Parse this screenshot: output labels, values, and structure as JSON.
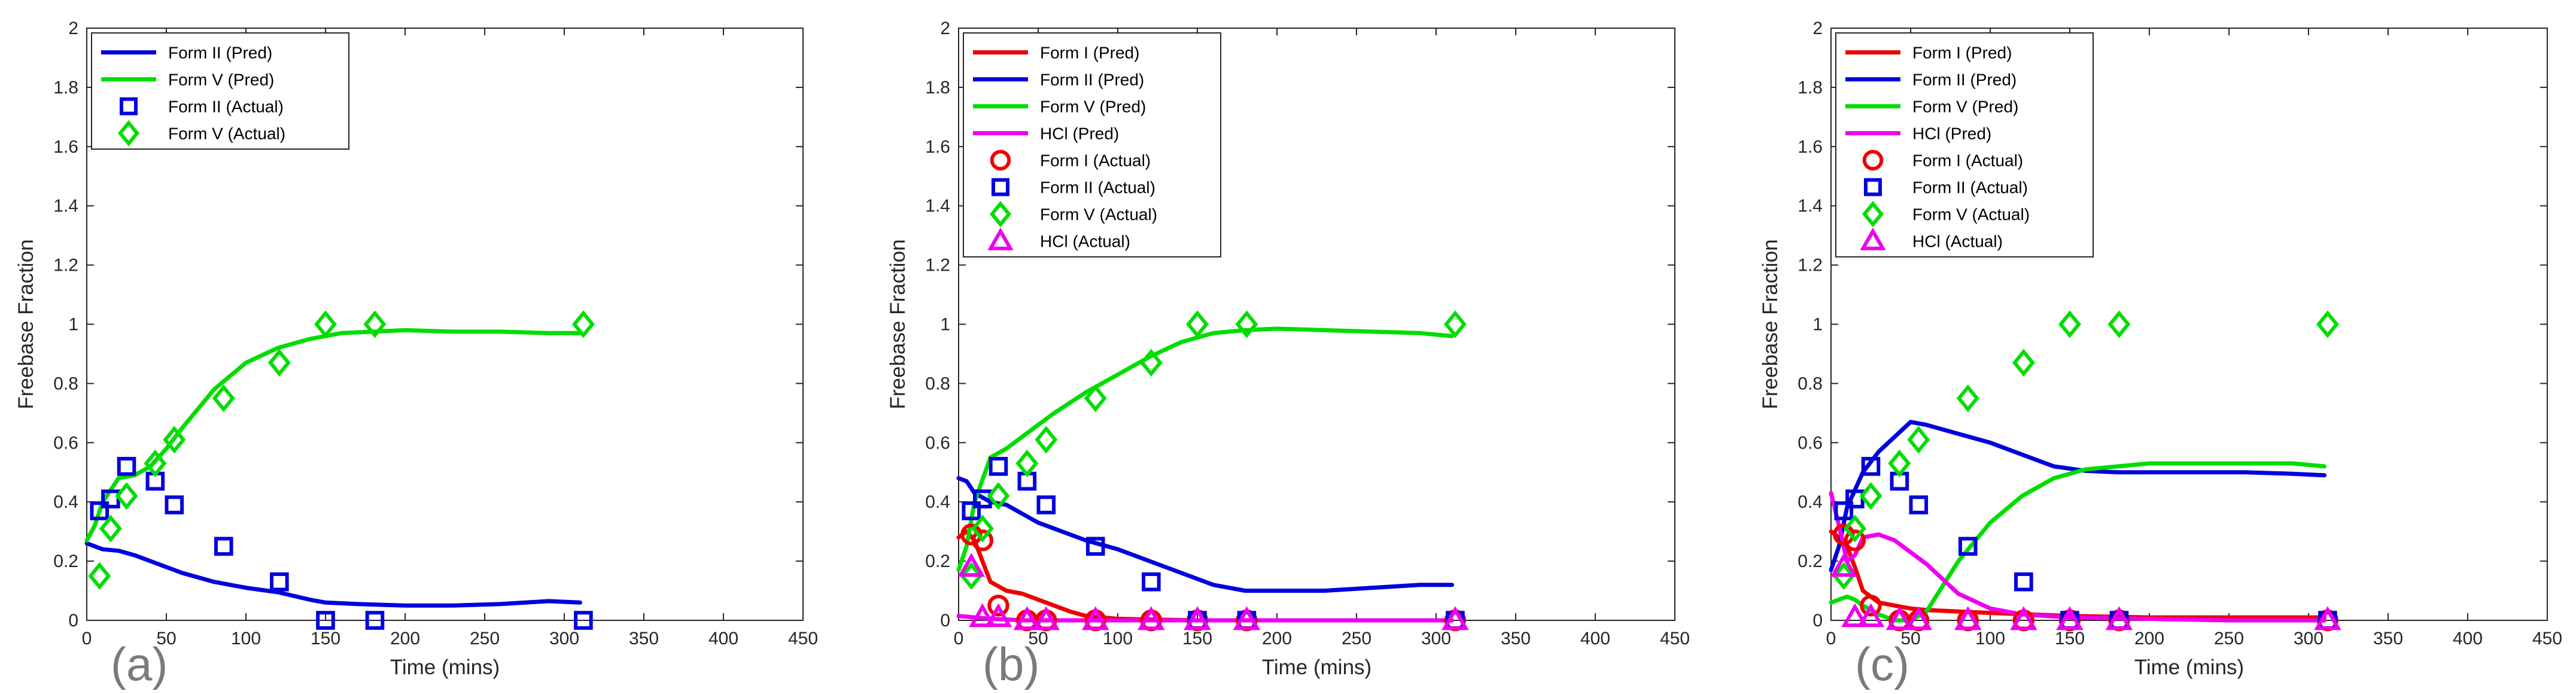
{
  "figure": {
    "panel_labels": [
      "(a)",
      "(b)",
      "(c)"
    ]
  },
  "chart_data": [
    {
      "type": "line",
      "panel_label": "(a)",
      "title": "",
      "xlabel": "Time (mins)",
      "ylabel": "Freebase Fraction",
      "xlim": [
        0,
        450
      ],
      "ylim": [
        0,
        2
      ],
      "xticks": [
        0,
        50,
        100,
        150,
        200,
        250,
        300,
        350,
        400,
        450
      ],
      "yticks": [
        0,
        0.2,
        0.4,
        0.6,
        0.8,
        1,
        1.2,
        1.4,
        1.6,
        1.8,
        2
      ],
      "grid": false,
      "legend_position": "top-left",
      "series": [
        {
          "name": "Form II (Pred)",
          "kind": "line",
          "color": "#0000dd",
          "x": [
            0,
            5,
            10,
            20,
            30,
            40,
            50,
            60,
            80,
            100,
            120,
            140,
            150,
            170,
            200,
            230,
            260,
            290,
            310
          ],
          "y": [
            0.26,
            0.25,
            0.24,
            0.235,
            0.22,
            0.2,
            0.18,
            0.16,
            0.13,
            0.11,
            0.095,
            0.07,
            0.06,
            0.055,
            0.05,
            0.05,
            0.055,
            0.065,
            0.06
          ]
        },
        {
          "name": "Form V (Pred)",
          "kind": "line",
          "color": "#00dd00",
          "x": [
            0,
            5,
            10,
            20,
            30,
            40,
            50,
            60,
            80,
            100,
            120,
            140,
            160,
            180,
            200,
            230,
            260,
            290,
            310
          ],
          "y": [
            0.27,
            0.32,
            0.4,
            0.48,
            0.49,
            0.52,
            0.58,
            0.65,
            0.78,
            0.87,
            0.92,
            0.95,
            0.97,
            0.975,
            0.98,
            0.975,
            0.975,
            0.97,
            0.97
          ]
        },
        {
          "name": "Form II (Actual)",
          "kind": "marker",
          "marker": "square",
          "color": "#0000dd",
          "x": [
            8,
            15,
            25,
            43,
            55,
            86,
            121,
            150,
            181,
            312
          ],
          "y": [
            0.37,
            0.41,
            0.52,
            0.47,
            0.39,
            0.25,
            0.13,
            0,
            0,
            0
          ]
        },
        {
          "name": "Form V (Actual)",
          "kind": "marker",
          "marker": "diamond",
          "color": "#00dd00",
          "x": [
            8,
            15,
            25,
            43,
            55,
            86,
            121,
            150,
            181,
            312
          ],
          "y": [
            0.15,
            0.31,
            0.42,
            0.53,
            0.61,
            0.75,
            0.87,
            1.0,
            1.0,
            1.0
          ]
        }
      ]
    },
    {
      "type": "line",
      "panel_label": "(b)",
      "title": "",
      "xlabel": "Time (mins)",
      "ylabel": "Freebase Fraction",
      "xlim": [
        0,
        450
      ],
      "ylim": [
        0,
        2
      ],
      "xticks": [
        0,
        50,
        100,
        150,
        200,
        250,
        300,
        350,
        400,
        450
      ],
      "yticks": [
        0,
        0.2,
        0.4,
        0.6,
        0.8,
        1,
        1.2,
        1.4,
        1.6,
        1.8,
        2
      ],
      "grid": false,
      "legend_position": "top-left",
      "series": [
        {
          "name": "Form I (Pred)",
          "kind": "line",
          "color": "#ee0000",
          "x": [
            0,
            5,
            10,
            20,
            30,
            40,
            50,
            60,
            70,
            80,
            100,
            150,
            200,
            250,
            310
          ],
          "y": [
            0.28,
            0.3,
            0.27,
            0.13,
            0.1,
            0.09,
            0.07,
            0.05,
            0.03,
            0.015,
            0.005,
            0,
            0,
            0,
            0
          ]
        },
        {
          "name": "Form II (Pred)",
          "kind": "line",
          "color": "#0000dd",
          "x": [
            0,
            5,
            10,
            20,
            30,
            40,
            50,
            60,
            80,
            100,
            120,
            140,
            160,
            180,
            200,
            230,
            260,
            290,
            310
          ],
          "y": [
            0.48,
            0.47,
            0.43,
            0.4,
            0.39,
            0.36,
            0.33,
            0.31,
            0.27,
            0.24,
            0.2,
            0.16,
            0.12,
            0.1,
            0.1,
            0.1,
            0.11,
            0.12,
            0.12
          ]
        },
        {
          "name": "Form V (Pred)",
          "kind": "line",
          "color": "#00dd00",
          "x": [
            0,
            5,
            10,
            20,
            30,
            40,
            50,
            60,
            80,
            100,
            120,
            140,
            160,
            180,
            200,
            230,
            260,
            290,
            310
          ],
          "y": [
            0.17,
            0.25,
            0.4,
            0.55,
            0.58,
            0.62,
            0.66,
            0.7,
            0.77,
            0.83,
            0.89,
            0.94,
            0.97,
            0.98,
            0.985,
            0.98,
            0.975,
            0.97,
            0.96
          ]
        },
        {
          "name": "HCl (Pred)",
          "kind": "line",
          "color": "#ee00ee",
          "x": [
            0,
            10,
            20,
            30,
            40,
            60,
            100,
            150,
            200,
            250,
            310
          ],
          "y": [
            0.015,
            0.01,
            0.005,
            0.003,
            0,
            0,
            0,
            0,
            0,
            0,
            0
          ]
        },
        {
          "name": "Form I (Actual)",
          "kind": "marker",
          "marker": "circle",
          "color": "#ee0000",
          "x": [
            8,
            15,
            25,
            43,
            55,
            86,
            121,
            150,
            181,
            312
          ],
          "y": [
            0.29,
            0.27,
            0.05,
            0,
            0,
            0,
            0,
            0,
            0,
            0
          ]
        },
        {
          "name": "Form II (Actual)",
          "kind": "marker",
          "marker": "square",
          "color": "#0000dd",
          "x": [
            8,
            15,
            25,
            43,
            55,
            86,
            121,
            150,
            181,
            312
          ],
          "y": [
            0.37,
            0.41,
            0.52,
            0.47,
            0.39,
            0.25,
            0.13,
            0,
            0,
            0
          ]
        },
        {
          "name": "Form V (Actual)",
          "kind": "marker",
          "marker": "diamond",
          "color": "#00dd00",
          "x": [
            8,
            15,
            25,
            43,
            55,
            86,
            121,
            150,
            181,
            312
          ],
          "y": [
            0.15,
            0.31,
            0.42,
            0.53,
            0.61,
            0.75,
            0.87,
            1.0,
            1.0,
            1.0
          ]
        },
        {
          "name": "HCl (Actual)",
          "kind": "marker",
          "marker": "triangle",
          "color": "#ee00ee",
          "x": [
            8,
            15,
            25,
            43,
            55,
            86,
            121,
            150,
            181,
            312
          ],
          "y": [
            0.18,
            0.01,
            0.01,
            0,
            0,
            0,
            0,
            0,
            0,
            0
          ]
        }
      ]
    },
    {
      "type": "line",
      "panel_label": "(c)",
      "title": "",
      "xlabel": "Time (mins)",
      "ylabel": "Freebase Fraction",
      "xlim": [
        0,
        450
      ],
      "ylim": [
        0,
        2
      ],
      "xticks": [
        0,
        50,
        100,
        150,
        200,
        250,
        300,
        350,
        400,
        450
      ],
      "yticks": [
        0,
        0.2,
        0.4,
        0.6,
        0.8,
        1,
        1.2,
        1.4,
        1.6,
        1.8,
        2
      ],
      "grid": false,
      "legend_position": "top-left",
      "series": [
        {
          "name": "Form I (Pred)",
          "kind": "line",
          "color": "#ee0000",
          "x": [
            0,
            5,
            10,
            15,
            20,
            30,
            40,
            50,
            60,
            80,
            100,
            150,
            200,
            250,
            310
          ],
          "y": [
            0.3,
            0.28,
            0.25,
            0.18,
            0.1,
            0.06,
            0.05,
            0.04,
            0.035,
            0.03,
            0.025,
            0.015,
            0.01,
            0.01,
            0.01
          ]
        },
        {
          "name": "Form II (Pred)",
          "kind": "line",
          "color": "#0000dd",
          "x": [
            0,
            5,
            10,
            20,
            30,
            40,
            50,
            60,
            80,
            100,
            120,
            140,
            160,
            180,
            200,
            230,
            260,
            290,
            310
          ],
          "y": [
            0.17,
            0.25,
            0.38,
            0.5,
            0.57,
            0.62,
            0.67,
            0.66,
            0.63,
            0.6,
            0.56,
            0.52,
            0.505,
            0.5,
            0.5,
            0.5,
            0.5,
            0.495,
            0.49
          ]
        },
        {
          "name": "Form V (Pred)",
          "kind": "line",
          "color": "#00dd00",
          "x": [
            0,
            5,
            10,
            15,
            20,
            30,
            40,
            50,
            60,
            80,
            100,
            120,
            140,
            160,
            180,
            200,
            230,
            260,
            290,
            310
          ],
          "y": [
            0.06,
            0.07,
            0.08,
            0.07,
            0.05,
            0.02,
            0,
            0,
            0.03,
            0.2,
            0.33,
            0.42,
            0.48,
            0.51,
            0.52,
            0.53,
            0.53,
            0.53,
            0.53,
            0.52
          ]
        },
        {
          "name": "HCl (Pred)",
          "kind": "line",
          "color": "#ee00ee",
          "x": [
            0,
            5,
            10,
            15,
            20,
            30,
            40,
            50,
            60,
            70,
            80,
            100,
            120,
            150,
            200,
            250,
            310
          ],
          "y": [
            0.43,
            0.32,
            0.2,
            0.22,
            0.28,
            0.29,
            0.27,
            0.23,
            0.19,
            0.14,
            0.09,
            0.04,
            0.02,
            0.01,
            0.005,
            0,
            0
          ]
        },
        {
          "name": "Form I (Actual)",
          "kind": "marker",
          "marker": "circle",
          "color": "#ee0000",
          "x": [
            8,
            15,
            25,
            43,
            55,
            86,
            121,
            150,
            181,
            312
          ],
          "y": [
            0.29,
            0.27,
            0.05,
            0,
            0,
            0,
            0,
            0,
            0,
            0
          ]
        },
        {
          "name": "Form II (Actual)",
          "kind": "marker",
          "marker": "square",
          "color": "#0000dd",
          "x": [
            8,
            15,
            25,
            43,
            55,
            86,
            121,
            150,
            181,
            312
          ],
          "y": [
            0.37,
            0.41,
            0.52,
            0.47,
            0.39,
            0.25,
            0.13,
            0,
            0,
            0
          ]
        },
        {
          "name": "Form V (Actual)",
          "kind": "marker",
          "marker": "diamond",
          "color": "#00dd00",
          "x": [
            8,
            15,
            25,
            43,
            55,
            86,
            121,
            150,
            181,
            312
          ],
          "y": [
            0.15,
            0.31,
            0.42,
            0.53,
            0.61,
            0.75,
            0.87,
            1.0,
            1.0,
            1.0
          ]
        },
        {
          "name": "HCl (Actual)",
          "kind": "marker",
          "marker": "triangle",
          "color": "#ee00ee",
          "x": [
            8,
            15,
            25,
            43,
            55,
            86,
            121,
            150,
            181,
            312
          ],
          "y": [
            0.18,
            0.01,
            0.01,
            0,
            0,
            0,
            0,
            0,
            0,
            0
          ]
        }
      ]
    }
  ]
}
